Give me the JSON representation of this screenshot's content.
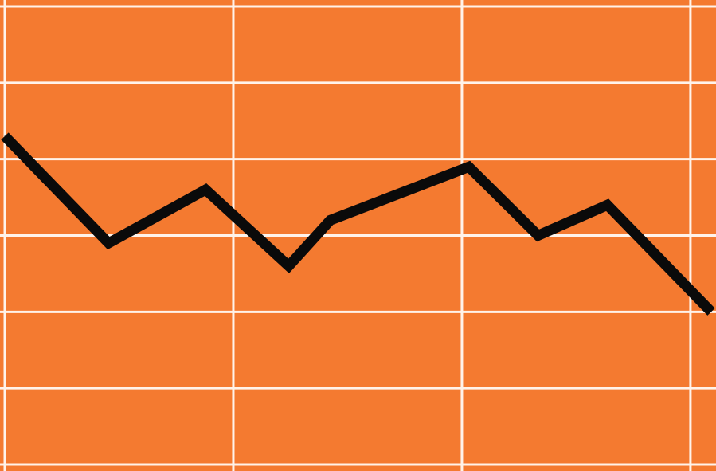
{
  "chart_data": {
    "type": "line",
    "x": [
      0,
      1.5,
      2.9,
      4.1,
      4.7,
      6.7,
      7.7,
      8.7,
      10.2
    ],
    "series": [
      {
        "values": [
          4.3,
          2.9,
          3.6,
          2.6,
          3.2,
          3.9,
          3.0,
          3.4,
          2.0
        ]
      }
    ],
    "xlim": [
      0,
      10.2
    ],
    "ylim": [
      0,
      6
    ],
    "grid": true,
    "legend": "none"
  },
  "colors": {
    "background": "#f47a30",
    "grid": "#fff3ea",
    "line": "#0a0a0a"
  }
}
